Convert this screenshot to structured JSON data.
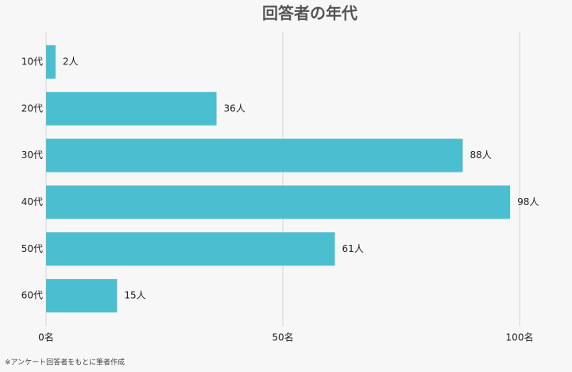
{
  "chart_data": {
    "type": "hbar",
    "title": "回答者の年代",
    "categories": [
      "10代",
      "20代",
      "30代",
      "40代",
      "50代",
      "60代"
    ],
    "values": [
      2,
      36,
      88,
      98,
      61,
      15
    ],
    "value_labels": [
      "2人",
      "36人",
      "88人",
      "98人",
      "61人",
      "15人"
    ],
    "color": "#4bbfcf",
    "xlim": [
      0,
      100
    ],
    "xticks": [
      {
        "value": 0,
        "label": "0名"
      },
      {
        "value": 50,
        "label": "50名"
      },
      {
        "value": 100,
        "label": "100名"
      }
    ],
    "grid": true,
    "source": "※アンケート回答者をもとに筆者作成"
  }
}
